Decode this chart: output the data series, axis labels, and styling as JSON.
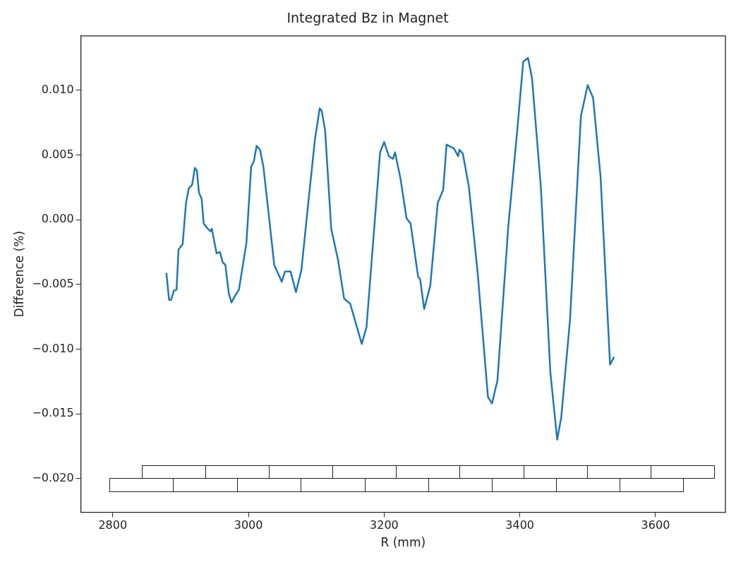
{
  "chart_data": {
    "type": "line",
    "title": "Integrated Bz in Magnet",
    "xlabel": "R (mm)",
    "ylabel": "Difference (%)",
    "xlim": [
      2753,
      3703
    ],
    "ylim": [
      -0.0226,
      0.0142
    ],
    "xticks": [
      2800,
      3000,
      3200,
      3400,
      3600
    ],
    "yticks": [
      {
        "value": -0.02,
        "label": "−0.020"
      },
      {
        "value": -0.015,
        "label": "−0.015"
      },
      {
        "value": -0.01,
        "label": "−0.010"
      },
      {
        "value": -0.005,
        "label": "−0.005"
      },
      {
        "value": 0,
        "label": "0.000"
      },
      {
        "value": 0.005,
        "label": "0.005"
      },
      {
        "value": 0.01,
        "label": "0.010"
      }
    ],
    "grid": false,
    "legend": false,
    "marker": "none",
    "series": [
      {
        "color": "#1f77b4",
        "x": [
          2879,
          2883,
          2886,
          2890,
          2894,
          2897,
          2903,
          2908,
          2912,
          2917,
          2921,
          2924,
          2927,
          2931,
          2934,
          2940,
          2944,
          2946,
          2953,
          2958,
          2962,
          2966,
          2971,
          2975,
          2979,
          2986,
          2997,
          3004,
          3008,
          3012,
          3017,
          3022,
          3028,
          3038,
          3049,
          3054,
          3062,
          3070,
          3078,
          3089,
          3098,
          3105,
          3108,
          3113,
          3122,
          3132,
          3141,
          3150,
          3167,
          3174,
          3185,
          3194,
          3200,
          3207,
          3213,
          3216,
          3224,
          3233,
          3239,
          3250,
          3253,
          3259,
          3268,
          3279,
          3287,
          3292,
          3303,
          3309,
          3311,
          3316,
          3325,
          3338,
          3353,
          3359,
          3367,
          3383,
          3396,
          3405,
          3412,
          3418,
          3431,
          3445,
          3455,
          3461,
          3474,
          3490,
          3500,
          3508,
          3519,
          3533,
          3539
        ],
        "values": [
          -0.0041,
          -0.0062,
          -0.0062,
          -0.0055,
          -0.0054,
          -0.0023,
          -0.0019,
          0.0013,
          0.0024,
          0.0027,
          0.004,
          0.0038,
          0.0021,
          0.0016,
          -0.0003,
          -0.0007,
          -0.0009,
          -0.0007,
          -0.0026,
          -0.0025,
          -0.0033,
          -0.0035,
          -0.0057,
          -0.0064,
          -0.006,
          -0.0054,
          -0.0018,
          0.0041,
          0.0045,
          0.0057,
          0.0054,
          0.0041,
          0.0013,
          -0.0035,
          -0.0048,
          -0.004,
          -0.004,
          -0.0056,
          -0.0039,
          0.0017,
          0.0062,
          0.0086,
          0.0084,
          0.0069,
          -0.0007,
          -0.0031,
          -0.0061,
          -0.0065,
          -0.0096,
          -0.0083,
          -0.0009,
          0.0052,
          0.006,
          0.0049,
          0.0047,
          0.0052,
          0.0032,
          0.0001,
          -0.0003,
          -0.0044,
          -0.0046,
          -0.0069,
          -0.0051,
          0.0013,
          0.0023,
          0.0058,
          0.0055,
          0.0049,
          0.0054,
          0.0051,
          0.0025,
          -0.0042,
          -0.0137,
          -0.0142,
          -0.0124,
          -0.0005,
          0.0068,
          0.0122,
          0.0125,
          0.0109,
          0.0025,
          -0.0118,
          -0.017,
          -0.0153,
          -0.0077,
          0.008,
          0.0104,
          0.0094,
          0.0033,
          -0.0112,
          -0.0106
        ]
      }
    ]
  }
}
